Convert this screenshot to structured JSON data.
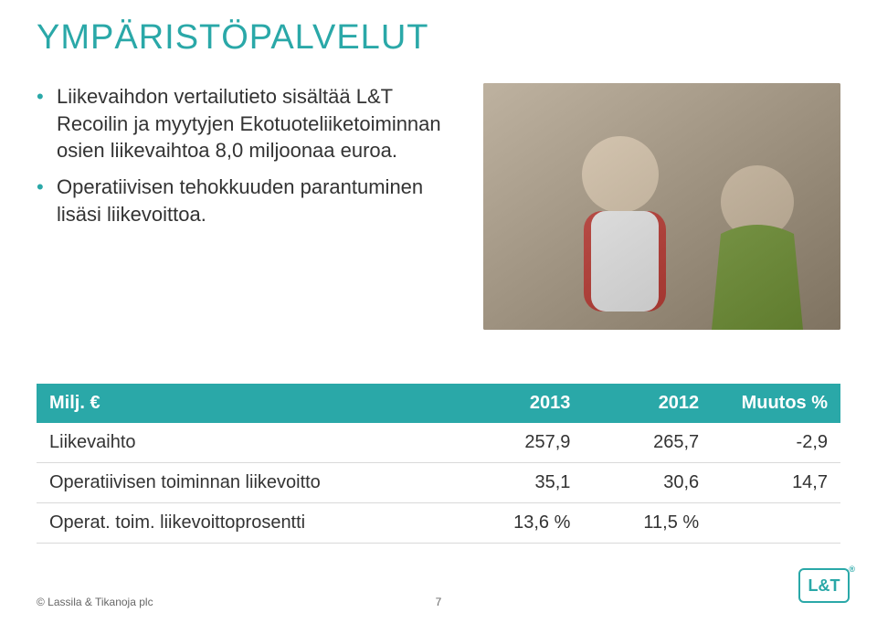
{
  "colors": {
    "accent": "#2aa8a8",
    "bullet": "#2aa8a8",
    "text": "#333333",
    "header_bg": "#2aa8a8",
    "header_text": "#ffffff",
    "row_border": "#d9d9d9",
    "logo": "#2aa8a8"
  },
  "title": "YMPÄRISTÖPALVELUT",
  "bullets": [
    "Liikevaihdon vertailutieto sisältää L&T Recoilin ja myytyjen Ekotuoteliiketoiminnan osien liikevaihtoa 8,0 miljoonaa euroa.",
    "Operatiivisen tehokkuuden parantuminen lisäsi liikevoittoa."
  ],
  "image_alt": "Photo of two people",
  "table": {
    "header": [
      "Milj. €",
      "2013",
      "2012",
      "Muutos %"
    ],
    "rows": [
      [
        "Liikevaihto",
        "257,9",
        "265,7",
        "-2,9"
      ],
      [
        "Operatiivisen toiminnan liikevoitto",
        "35,1",
        "30,6",
        "14,7"
      ],
      [
        "Operat. toim. liikevoittoprosentti",
        "13,6 %",
        "11,5 %",
        ""
      ]
    ],
    "col_widths": [
      "52%",
      "16%",
      "16%",
      "16%"
    ]
  },
  "footer": "© Lassila & Tikanoja plc",
  "page_number": "7",
  "logo_text": "L&T",
  "logo_reg": "®"
}
